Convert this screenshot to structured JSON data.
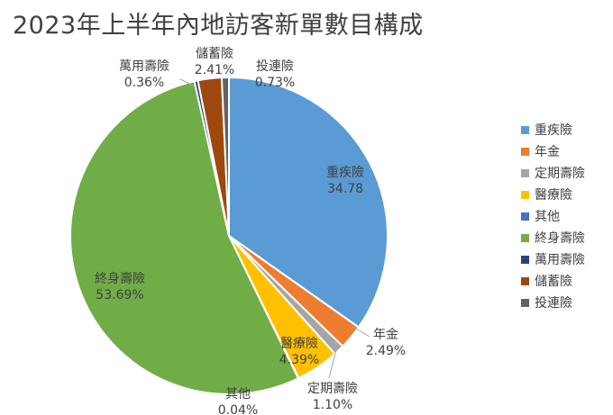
{
  "title": "2023年上半年內地訪客新單數目構成",
  "chart_data": {
    "type": "pie",
    "title": "2023年上半年內地訪客新單數目構成",
    "legend_position": "right",
    "slices": [
      {
        "label": "重疾險",
        "value": 34.78,
        "display": "34.78",
        "color": "#5b9bd5"
      },
      {
        "label": "年金",
        "value": 2.49,
        "display": "2.49%",
        "color": "#ed7d31"
      },
      {
        "label": "定期壽險",
        "value": 1.1,
        "display": "1.10%",
        "color": "#a5a5a5"
      },
      {
        "label": "醫療險",
        "value": 4.39,
        "display": "4.39%",
        "color": "#ffc000"
      },
      {
        "label": "其他",
        "value": 0.04,
        "display": "0.04%",
        "color": "#4472c4"
      },
      {
        "label": "終身壽險",
        "value": 53.69,
        "display": "53.69%",
        "color": "#70ad47"
      },
      {
        "label": "萬用壽險",
        "value": 0.36,
        "display": "0.36%",
        "color": "#264478"
      },
      {
        "label": "儲蓄險",
        "value": 2.41,
        "display": "2.41%",
        "color": "#9e480e"
      },
      {
        "label": "投連險",
        "value": 0.73,
        "display": "0.73%",
        "color": "#636363"
      }
    ]
  }
}
